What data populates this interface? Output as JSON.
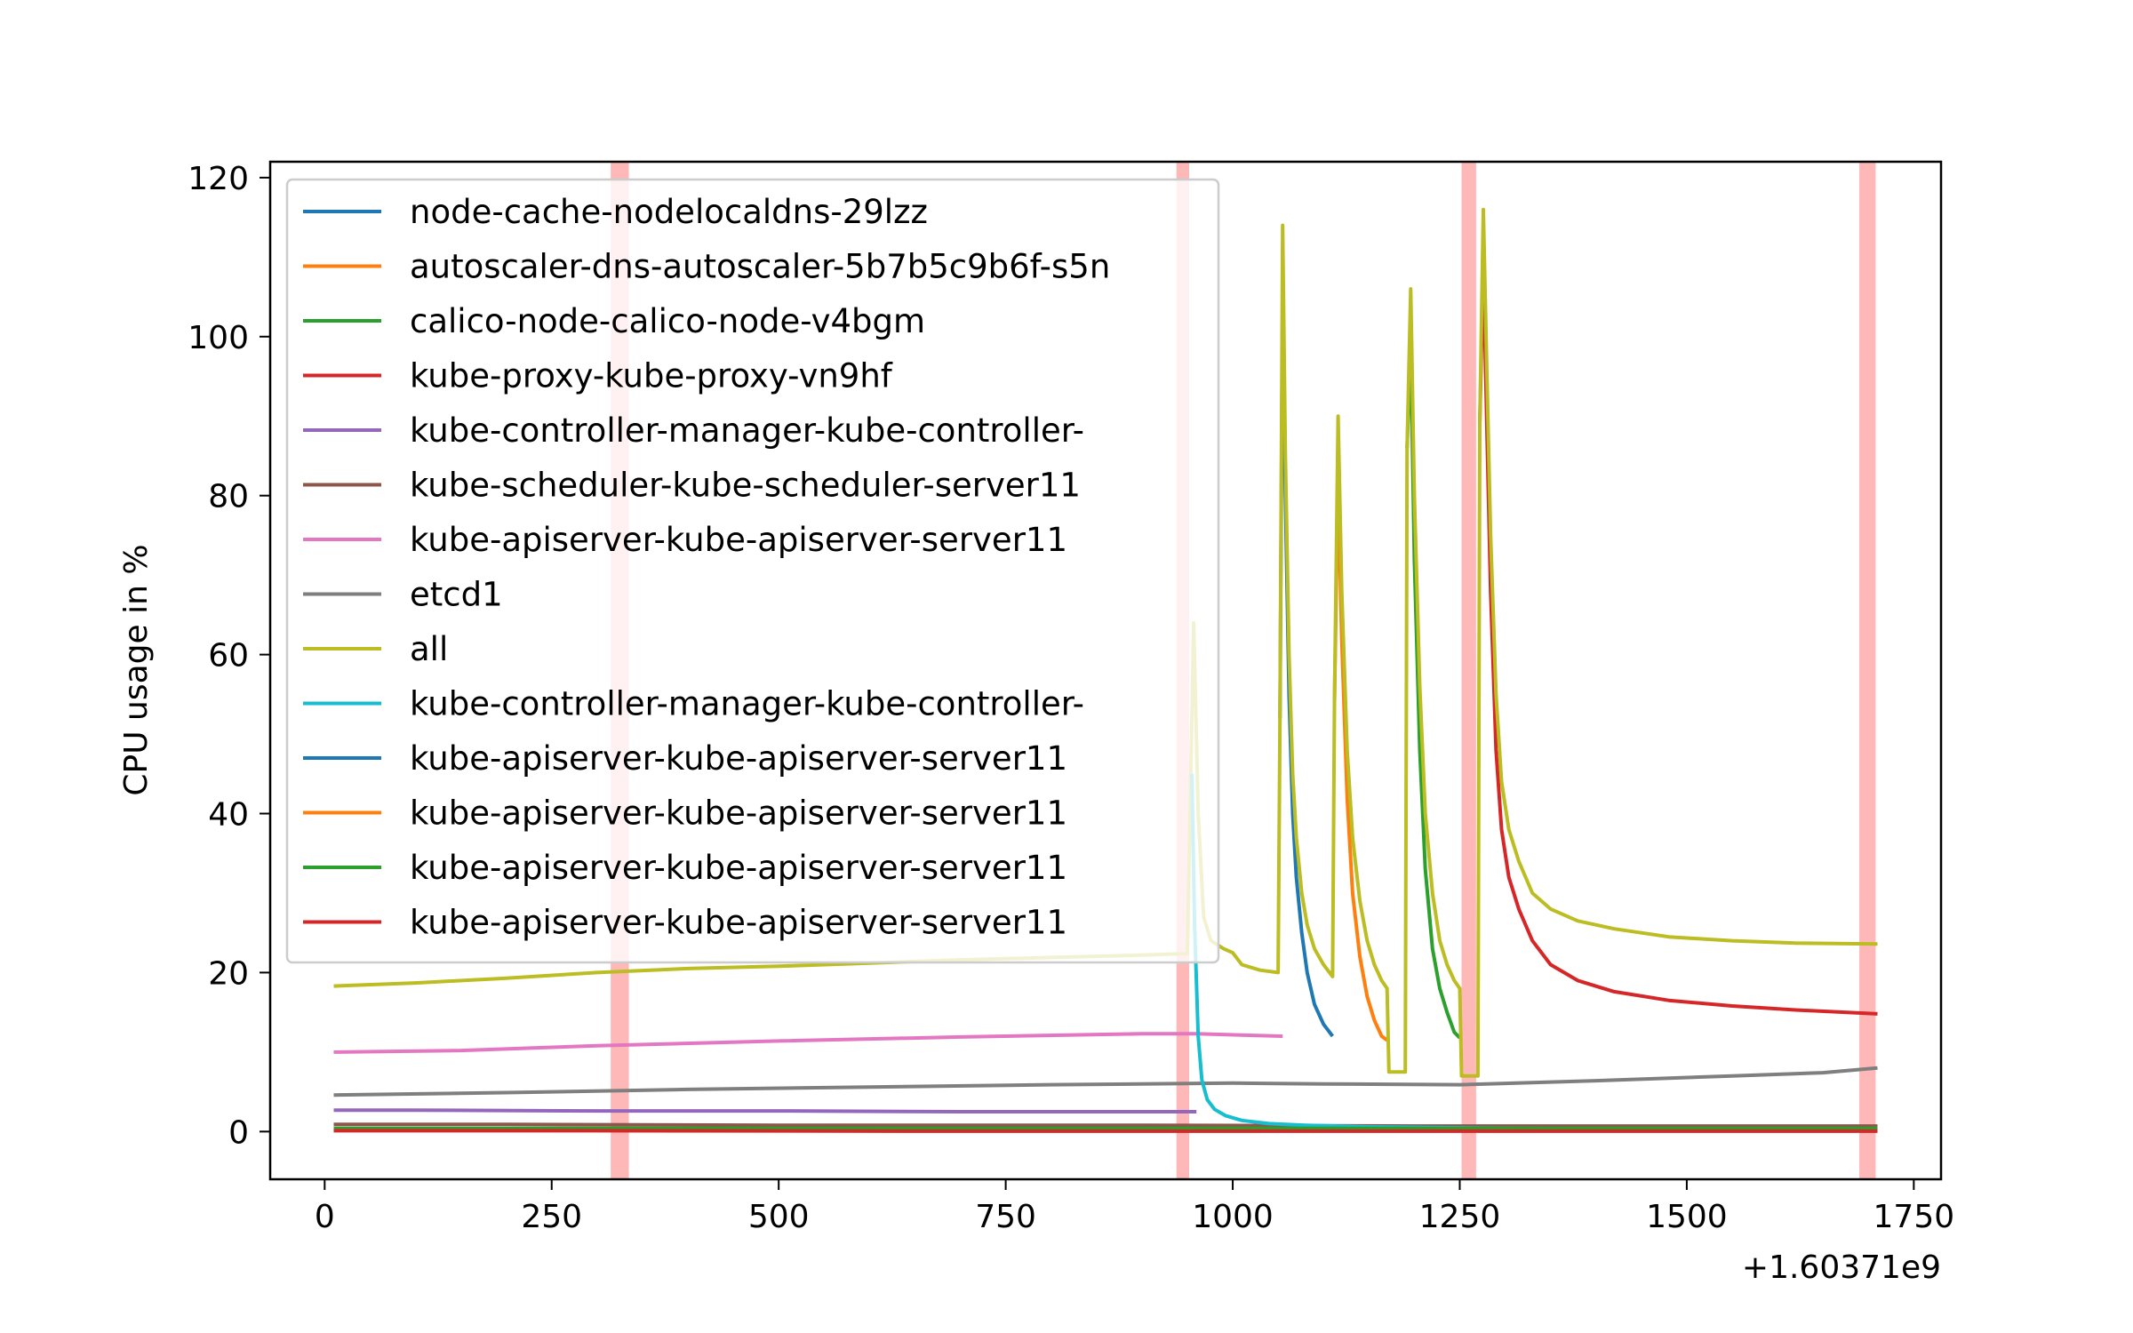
{
  "chart_data": {
    "type": "line",
    "title": "",
    "xlabel": "",
    "ylabel": "CPU usage in %",
    "x_offset_label": "+1.60371e9",
    "xlim": [
      -60,
      1780
    ],
    "ylim": [
      -6,
      122
    ],
    "xticks": [
      0,
      250,
      500,
      750,
      1000,
      1250,
      1500,
      1750
    ],
    "yticks": [
      0,
      20,
      40,
      60,
      80,
      100,
      120
    ],
    "grid": false,
    "legend_position": "upper-left",
    "highlight_bands": [
      {
        "x0": 315,
        "x1": 335,
        "opacity": 0.28
      },
      {
        "x0": 938,
        "x1": 952,
        "opacity": 0.28
      },
      {
        "x0": 1252,
        "x1": 1268,
        "opacity": 0.28
      },
      {
        "x0": 1690,
        "x1": 1708,
        "opacity": 0.28
      }
    ],
    "series": [
      {
        "name": "node-cache-nodelocaldns-29lzz",
        "color": "#1f77b4",
        "points": [
          [
            1052,
            52
          ],
          [
            1055,
            106
          ],
          [
            1058,
            80
          ],
          [
            1062,
            55
          ],
          [
            1066,
            40
          ],
          [
            1070,
            32
          ],
          [
            1076,
            25
          ],
          [
            1082,
            20
          ],
          [
            1090,
            16
          ],
          [
            1100,
            13.5
          ],
          [
            1110,
            12
          ]
        ]
      },
      {
        "name": "autoscaler-dns-autoscaler-5b7b5c9b6f-s5n",
        "color": "#ff7f0e",
        "points": [
          [
            1112,
            54
          ],
          [
            1116,
            82
          ],
          [
            1120,
            62
          ],
          [
            1126,
            42
          ],
          [
            1132,
            30
          ],
          [
            1140,
            22
          ],
          [
            1148,
            17
          ],
          [
            1156,
            14
          ],
          [
            1164,
            12
          ],
          [
            1170,
            11.5
          ]
        ]
      },
      {
        "name": "calico-node-calico-node-v4bgm",
        "color": "#2ca02c",
        "points": [
          [
            1192,
            86
          ],
          [
            1196,
            99
          ],
          [
            1200,
            72
          ],
          [
            1206,
            48
          ],
          [
            1212,
            33
          ],
          [
            1220,
            23
          ],
          [
            1228,
            18
          ],
          [
            1236,
            15
          ],
          [
            1244,
            12.5
          ],
          [
            1250,
            11.8
          ]
        ]
      },
      {
        "name": "kube-proxy-kube-proxy-vn9hf",
        "color": "#d62728",
        "points": [
          [
            1272,
            89
          ],
          [
            1276,
            109
          ],
          [
            1280,
            88
          ],
          [
            1284,
            68
          ],
          [
            1290,
            48
          ],
          [
            1296,
            38
          ],
          [
            1304,
            32
          ],
          [
            1315,
            28
          ],
          [
            1330,
            24
          ],
          [
            1350,
            21
          ],
          [
            1380,
            19
          ],
          [
            1420,
            17.6
          ],
          [
            1480,
            16.5
          ],
          [
            1550,
            15.8
          ],
          [
            1620,
            15.3
          ],
          [
            1710,
            14.8
          ]
        ]
      },
      {
        "name": "kube-controller-manager-kube-controller-",
        "color": "#9467bd",
        "points": [
          [
            10,
            2.7
          ],
          [
            100,
            2.7
          ],
          [
            300,
            2.6
          ],
          [
            500,
            2.6
          ],
          [
            700,
            2.5
          ],
          [
            900,
            2.5
          ],
          [
            960,
            2.5
          ]
        ]
      },
      {
        "name": "kube-scheduler-kube-scheduler-server11",
        "color": "#8c564b",
        "points": [
          [
            10,
            0.9
          ],
          [
            200,
            0.9
          ],
          [
            500,
            0.8
          ],
          [
            900,
            0.8
          ],
          [
            1200,
            0.7
          ],
          [
            1500,
            0.7
          ],
          [
            1710,
            0.7
          ]
        ]
      },
      {
        "name": "kube-apiserver-kube-apiserver-server11",
        "color": "#e377c2",
        "points": [
          [
            10,
            10
          ],
          [
            150,
            10.2
          ],
          [
            300,
            10.8
          ],
          [
            500,
            11.4
          ],
          [
            700,
            11.9
          ],
          [
            900,
            12.3
          ],
          [
            960,
            12.3
          ],
          [
            1055,
            12
          ]
        ]
      },
      {
        "name": "etcd1",
        "color": "#7f7f7f",
        "points": [
          [
            10,
            4.6
          ],
          [
            200,
            4.9
          ],
          [
            400,
            5.3
          ],
          [
            600,
            5.6
          ],
          [
            800,
            5.9
          ],
          [
            1000,
            6.1
          ],
          [
            1100,
            6.0
          ],
          [
            1250,
            5.9
          ],
          [
            1400,
            6.4
          ],
          [
            1550,
            7.0
          ],
          [
            1650,
            7.4
          ],
          [
            1710,
            8.0
          ]
        ]
      },
      {
        "name": "all",
        "color": "#bcbd22",
        "points": [
          [
            10,
            18.3
          ],
          [
            100,
            18.7
          ],
          [
            200,
            19.3
          ],
          [
            300,
            20
          ],
          [
            400,
            20.5
          ],
          [
            500,
            20.8
          ],
          [
            600,
            21.2
          ],
          [
            700,
            21.6
          ],
          [
            800,
            21.9
          ],
          [
            900,
            22.2
          ],
          [
            950,
            22.4
          ],
          [
            957,
            64
          ],
          [
            962,
            40
          ],
          [
            968,
            27
          ],
          [
            976,
            24
          ],
          [
            990,
            23
          ],
          [
            1000,
            22.5
          ],
          [
            1010,
            21
          ],
          [
            1030,
            20.3
          ],
          [
            1050,
            20
          ],
          [
            1052,
            52
          ],
          [
            1055,
            114
          ],
          [
            1058,
            85
          ],
          [
            1062,
            60
          ],
          [
            1066,
            45
          ],
          [
            1070,
            37
          ],
          [
            1076,
            30
          ],
          [
            1082,
            26
          ],
          [
            1090,
            23
          ],
          [
            1100,
            21
          ],
          [
            1110,
            19.5
          ],
          [
            1112,
            54
          ],
          [
            1116,
            90
          ],
          [
            1120,
            68
          ],
          [
            1126,
            48
          ],
          [
            1132,
            37
          ],
          [
            1140,
            29
          ],
          [
            1148,
            24
          ],
          [
            1156,
            21
          ],
          [
            1164,
            19
          ],
          [
            1170,
            18
          ],
          [
            1172,
            7.5
          ],
          [
            1190,
            7.5
          ],
          [
            1192,
            86
          ],
          [
            1196,
            106
          ],
          [
            1200,
            80
          ],
          [
            1206,
            56
          ],
          [
            1212,
            40
          ],
          [
            1220,
            30
          ],
          [
            1228,
            24
          ],
          [
            1236,
            21
          ],
          [
            1244,
            19
          ],
          [
            1250,
            18
          ],
          [
            1252,
            7
          ],
          [
            1270,
            7
          ],
          [
            1272,
            89
          ],
          [
            1276,
            116
          ],
          [
            1280,
            95
          ],
          [
            1284,
            75
          ],
          [
            1290,
            55
          ],
          [
            1296,
            44
          ],
          [
            1304,
            38
          ],
          [
            1315,
            34
          ],
          [
            1330,
            30
          ],
          [
            1350,
            28
          ],
          [
            1380,
            26.5
          ],
          [
            1420,
            25.5
          ],
          [
            1480,
            24.5
          ],
          [
            1550,
            24
          ],
          [
            1620,
            23.7
          ],
          [
            1710,
            23.6
          ]
        ]
      },
      {
        "name": "kube-controller-manager-kube-controller-",
        "color": "#17becf",
        "points": [
          [
            955,
            45
          ],
          [
            958,
            26
          ],
          [
            962,
            12
          ],
          [
            966,
            6.5
          ],
          [
            972,
            4
          ],
          [
            980,
            2.8
          ],
          [
            992,
            2
          ],
          [
            1010,
            1.4
          ],
          [
            1040,
            1
          ],
          [
            1080,
            0.8
          ],
          [
            1150,
            0.6
          ],
          [
            1300,
            0.4
          ],
          [
            1500,
            0.3
          ],
          [
            1710,
            0.3
          ]
        ]
      },
      {
        "name": "kube-apiserver-kube-apiserver-server11",
        "color": "#1f77b4",
        "points": [
          [
            10,
            0.2
          ],
          [
            500,
            0.2
          ],
          [
            1000,
            0.2
          ],
          [
            1710,
            0.2
          ]
        ]
      },
      {
        "name": "kube-apiserver-kube-apiserver-server11",
        "color": "#ff7f0e",
        "points": [
          [
            10,
            0.3
          ],
          [
            500,
            0.3
          ],
          [
            1000,
            0.3
          ],
          [
            1710,
            0.3
          ]
        ]
      },
      {
        "name": "kube-apiserver-kube-apiserver-server11",
        "color": "#2ca02c",
        "points": [
          [
            10,
            0.4
          ],
          [
            500,
            0.4
          ],
          [
            1000,
            0.4
          ],
          [
            1710,
            0.4
          ]
        ]
      },
      {
        "name": "kube-apiserver-kube-apiserver-server11",
        "color": "#d62728",
        "points": [
          [
            10,
            0.1
          ],
          [
            300,
            0.1
          ],
          [
            700,
            0.05
          ],
          [
            1100,
            0.05
          ],
          [
            1710,
            0.05
          ]
        ]
      }
    ]
  }
}
